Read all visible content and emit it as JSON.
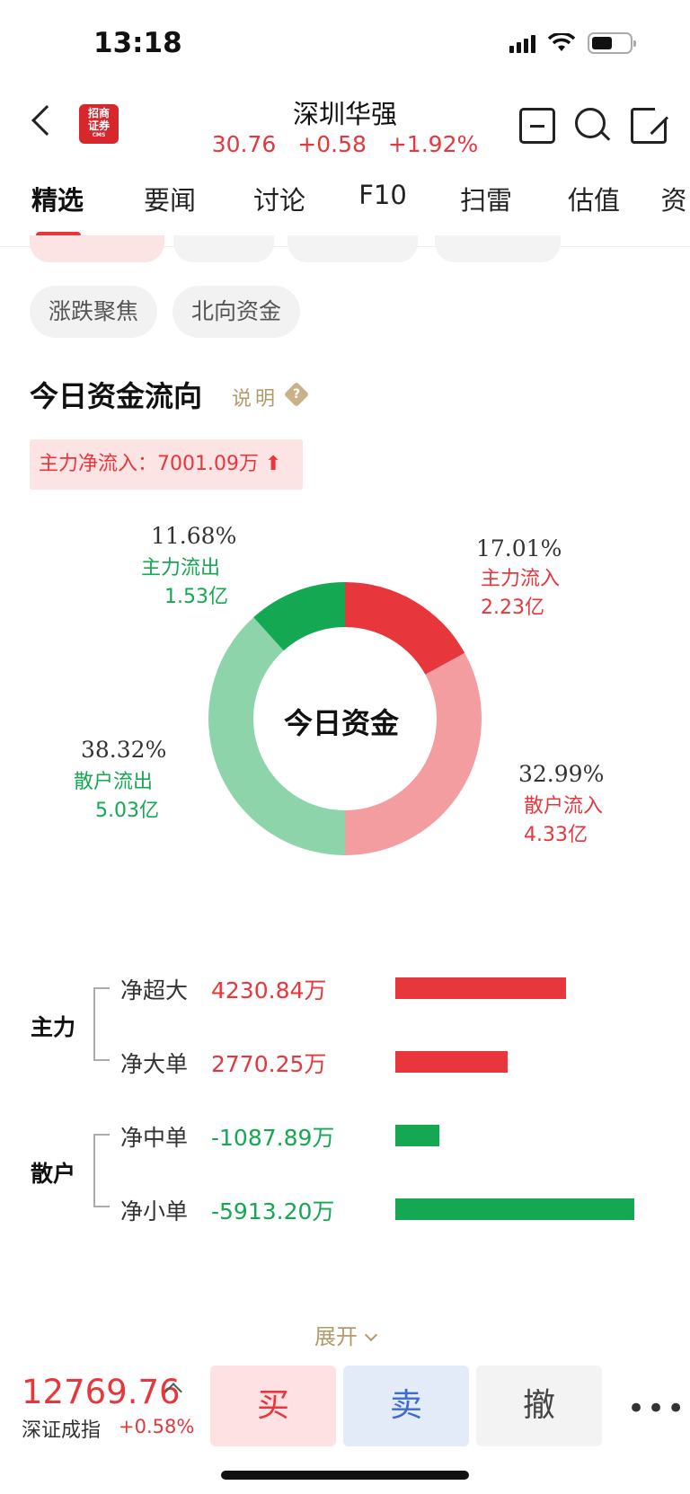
{
  "status_bar": {
    "time": "13:18"
  },
  "header": {
    "stock_name": "深圳华强",
    "price": "30.76",
    "change": "+0.58",
    "change_pct": "+1.92%",
    "logo_text_1": "招商",
    "logo_text_2": "证券",
    "logo_text_3": "CMS"
  },
  "tabs": [
    {
      "label": "精选",
      "active": true
    },
    {
      "label": "要闻"
    },
    {
      "label": "讨论"
    },
    {
      "label": "F10"
    },
    {
      "label": "扫雷"
    },
    {
      "label": "估值"
    },
    {
      "label": "资"
    }
  ],
  "chips": [
    "涨跌聚焦",
    "北向资金"
  ],
  "section": {
    "title": "今日资金流向",
    "help": "说明",
    "net_inflow": "主力净流入：7001.09万 ⬆"
  },
  "chart_data": {
    "type": "pie",
    "center_label": "今日资金",
    "slices": [
      {
        "name": "主力流入",
        "pct": 17.01,
        "value": "2.23亿",
        "color": "#e8363d",
        "pct_label": "17.01%"
      },
      {
        "name": "散户流入",
        "pct": 32.99,
        "value": "4.33亿",
        "color": "#f49da0",
        "pct_label": "32.99%"
      },
      {
        "name": "散户流出",
        "pct": 38.32,
        "value": "5.03亿",
        "color": "#8ed4aa",
        "pct_label": "38.32%"
      },
      {
        "name": "主力流出",
        "pct": 11.68,
        "value": "1.53亿",
        "color": "#14a852",
        "pct_label": "11.68%"
      }
    ]
  },
  "flows": {
    "groups": [
      {
        "name": "主力",
        "rows": [
          {
            "label": "净超大",
            "value": "4230.84万",
            "amount": 4230.84,
            "color": "#e8363d"
          },
          {
            "label": "净大单",
            "value": "2770.25万",
            "amount": 2770.25,
            "color": "#e8363d"
          }
        ]
      },
      {
        "name": "散户",
        "rows": [
          {
            "label": "净中单",
            "value": "-1087.89万",
            "amount": -1087.89,
            "color": "#14a852"
          },
          {
            "label": "净小单",
            "value": "-5913.20万",
            "amount": -5913.2,
            "color": "#14a852"
          }
        ]
      }
    ]
  },
  "expand_label": "展开",
  "bottom": {
    "index_value": "12769.76",
    "index_name": "深证成指",
    "index_change": "+0.58%",
    "buy": "买",
    "sell": "卖",
    "cancel": "撤",
    "more": "•••"
  }
}
